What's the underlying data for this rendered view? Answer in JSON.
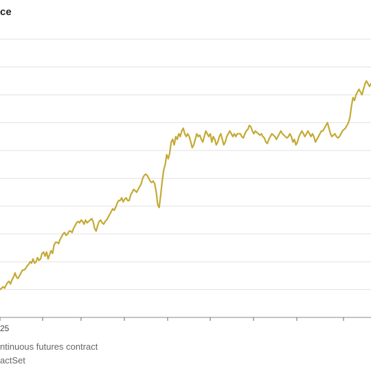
{
  "header": {
    "title": "ce"
  },
  "footer": {
    "note": "ntinuous futures contract",
    "source": "actSet"
  },
  "chart_data": {
    "type": "line",
    "line_color": "#C4A934",
    "grid": true,
    "xtick_labels": [
      "25"
    ],
    "ylim": [
      0,
      10
    ],
    "series": [
      {
        "values": [
          1.0,
          1.05,
          1.1,
          1.05,
          1.15,
          1.25,
          1.3,
          1.2,
          1.35,
          1.45,
          1.6,
          1.45,
          1.4,
          1.5,
          1.6,
          1.7,
          1.7,
          1.75,
          1.85,
          1.9,
          2.0,
          1.95,
          2.1,
          1.95,
          2.0,
          2.15,
          2.05,
          2.1,
          2.3,
          2.35,
          2.2,
          2.35,
          2.1,
          2.25,
          2.4,
          2.3,
          2.6,
          2.7,
          2.7,
          2.65,
          2.8,
          2.9,
          3.0,
          3.05,
          2.95,
          3.0,
          3.1,
          3.1,
          3.05,
          3.2,
          3.3,
          3.4,
          3.45,
          3.4,
          3.5,
          3.45,
          3.35,
          3.5,
          3.4,
          3.45,
          3.5,
          3.55,
          3.45,
          3.2,
          3.1,
          3.3,
          3.45,
          3.5,
          3.4,
          3.35,
          3.45,
          3.5,
          3.6,
          3.7,
          3.8,
          3.9,
          3.85,
          3.95,
          4.1,
          4.2,
          4.2,
          4.3,
          4.15,
          4.25,
          4.3,
          4.2,
          4.2,
          4.4,
          4.5,
          4.6,
          4.55,
          4.5,
          4.6,
          4.7,
          4.8,
          5.0,
          5.1,
          5.15,
          5.1,
          5.0,
          4.9,
          4.85,
          4.9,
          4.8,
          4.5,
          4.05,
          3.95,
          4.4,
          4.9,
          5.3,
          5.5,
          5.85,
          5.7,
          5.9,
          6.3,
          6.4,
          6.2,
          6.5,
          6.4,
          6.6,
          6.5,
          6.7,
          6.8,
          6.6,
          6.5,
          6.6,
          6.5,
          6.3,
          6.1,
          6.2,
          6.4,
          6.6,
          6.5,
          6.55,
          6.4,
          6.3,
          6.5,
          6.7,
          6.6,
          6.5,
          6.6,
          6.3,
          6.5,
          6.4,
          6.2,
          6.3,
          6.5,
          6.6,
          6.4,
          6.2,
          6.3,
          6.5,
          6.6,
          6.7,
          6.6,
          6.5,
          6.6,
          6.5,
          6.6,
          6.6,
          6.6,
          6.5,
          6.45,
          6.6,
          6.7,
          6.75,
          6.9,
          6.85,
          6.7,
          6.6,
          6.7,
          6.65,
          6.6,
          6.55,
          6.6,
          6.5,
          6.45,
          6.3,
          6.25,
          6.4,
          6.5,
          6.6,
          6.55,
          6.5,
          6.4,
          6.5,
          6.6,
          6.7,
          6.6,
          6.55,
          6.5,
          6.45,
          6.5,
          6.6,
          6.5,
          6.3,
          6.4,
          6.2,
          6.3,
          6.5,
          6.6,
          6.7,
          6.6,
          6.5,
          6.6,
          6.7,
          6.6,
          6.5,
          6.6,
          6.5,
          6.3,
          6.4,
          6.5,
          6.6,
          6.7,
          6.7,
          6.8,
          6.9,
          7.0,
          6.8,
          6.6,
          6.5,
          6.55,
          6.6,
          6.5,
          6.45,
          6.5,
          6.6,
          6.7,
          6.75,
          6.8,
          6.9,
          7.0,
          7.2,
          7.6,
          7.9,
          7.8,
          8.0,
          8.1,
          8.2,
          8.1,
          8.0,
          8.2,
          8.4,
          8.5,
          8.4,
          8.3,
          8.4
        ]
      }
    ]
  }
}
